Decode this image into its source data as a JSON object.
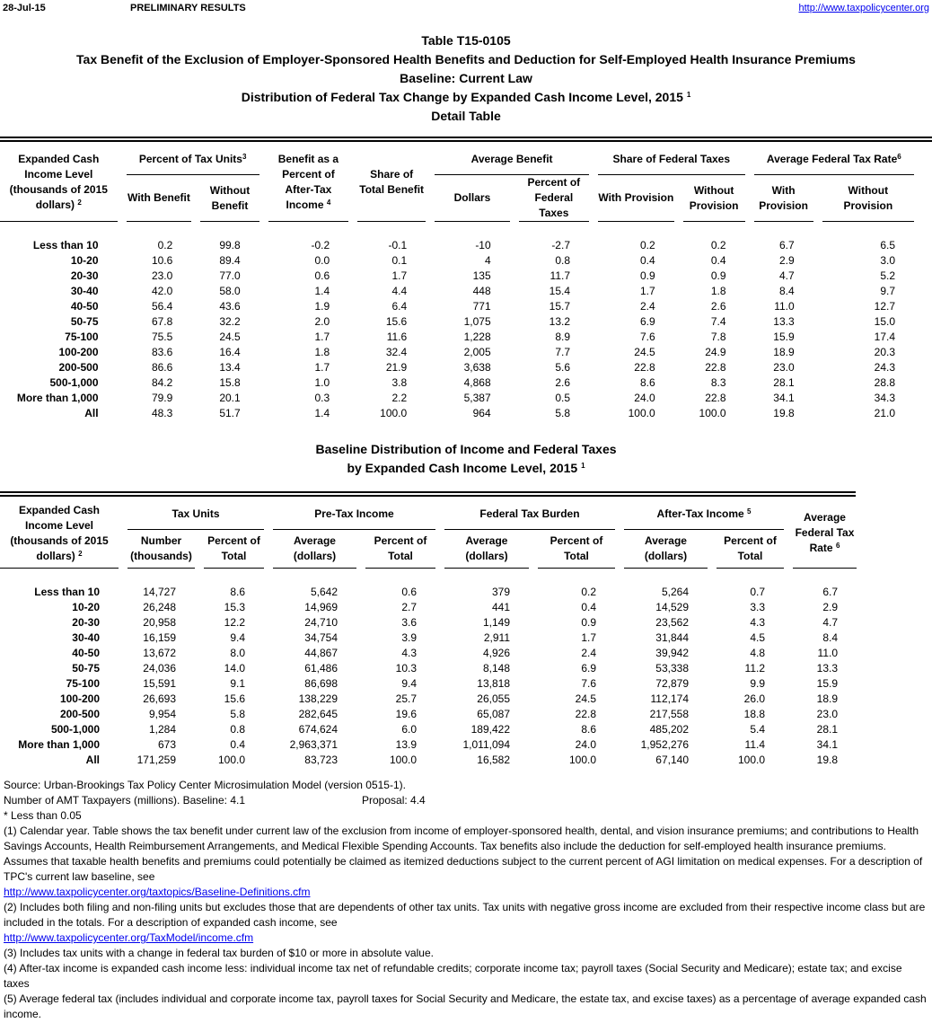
{
  "header": {
    "date": "28-Jul-15",
    "status": "PRELIMINARY RESULTS",
    "url": "http://www.taxpolicycenter.org"
  },
  "titles": {
    "table_id": "Table T15-0105",
    "line2": "Tax Benefit of the Exclusion of Employer-Sponsored Health Benefits and Deduction for Self-Employed Health Insurance Premiums",
    "line3": "Baseline: Current Law",
    "line4": "Distribution of Federal Tax Change by Expanded Cash Income Level, 2015",
    "line4_sup": "1",
    "line5": "Detail Table"
  },
  "table1": {
    "label_header": "Expanded Cash Income Level (thousands of 2015 dollars)",
    "label_sup": "2",
    "pct_units": "Percent of Tax Units",
    "pct_units_sup": "3",
    "with_benefit": "With Benefit",
    "without_benefit": "Without Benefit",
    "benefit_pct": "Benefit as a Percent of After-Tax Income",
    "benefit_pct_sup": "4",
    "share_total": "Share of Total Benefit",
    "avg_benefit": "Average Benefit",
    "dollars": "Dollars",
    "pct_fed": "Percent of Federal Taxes",
    "share_fed": "Share of Federal Taxes",
    "with_prov": "With Provision",
    "without_prov": "Without Provision",
    "avg_rate": "Average Federal Tax Rate",
    "avg_rate_sup": "6",
    "rows": [
      [
        "Less than 10",
        "0.2",
        "99.8",
        "-0.2",
        "-0.1",
        "-10",
        "-2.7",
        "0.2",
        "0.2",
        "6.7",
        "6.5"
      ],
      [
        "10-20",
        "10.6",
        "89.4",
        "0.0",
        "0.1",
        "4",
        "0.8",
        "0.4",
        "0.4",
        "2.9",
        "3.0"
      ],
      [
        "20-30",
        "23.0",
        "77.0",
        "0.6",
        "1.7",
        "135",
        "11.7",
        "0.9",
        "0.9",
        "4.7",
        "5.2"
      ],
      [
        "30-40",
        "42.0",
        "58.0",
        "1.4",
        "4.4",
        "448",
        "15.4",
        "1.7",
        "1.8",
        "8.4",
        "9.7"
      ],
      [
        "40-50",
        "56.4",
        "43.6",
        "1.9",
        "6.4",
        "771",
        "15.7",
        "2.4",
        "2.6",
        "11.0",
        "12.7"
      ],
      [
        "50-75",
        "67.8",
        "32.2",
        "2.0",
        "15.6",
        "1,075",
        "13.2",
        "6.9",
        "7.4",
        "13.3",
        "15.0"
      ],
      [
        "75-100",
        "75.5",
        "24.5",
        "1.7",
        "11.6",
        "1,228",
        "8.9",
        "7.6",
        "7.8",
        "15.9",
        "17.4"
      ],
      [
        "100-200",
        "83.6",
        "16.4",
        "1.8",
        "32.4",
        "2,005",
        "7.7",
        "24.5",
        "24.9",
        "18.9",
        "20.3"
      ],
      [
        "200-500",
        "86.6",
        "13.4",
        "1.7",
        "21.9",
        "3,638",
        "5.6",
        "22.8",
        "22.8",
        "23.0",
        "24.3"
      ],
      [
        "500-1,000",
        "84.2",
        "15.8",
        "1.0",
        "3.8",
        "4,868",
        "2.6",
        "8.6",
        "8.3",
        "28.1",
        "28.8"
      ],
      [
        "More than 1,000",
        "79.9",
        "20.1",
        "0.3",
        "2.2",
        "5,387",
        "0.5",
        "24.0",
        "22.8",
        "34.1",
        "34.3"
      ],
      [
        "All",
        "48.3",
        "51.7",
        "1.4",
        "100.0",
        "964",
        "5.8",
        "100.0",
        "100.0",
        "19.8",
        "21.0"
      ]
    ]
  },
  "table2_title": {
    "line1": "Baseline Distribution of Income and Federal Taxes",
    "line2": "by Expanded Cash Income Level, 2015",
    "sup": "1"
  },
  "table2": {
    "label_header": "Expanded Cash Income Level (thousands of 2015 dollars)",
    "label_sup": "2",
    "tax_units": "Tax Units",
    "number": "Number (thousands)",
    "pct_total": "Percent of Total",
    "pretax": "Pre-Tax Income",
    "avg_dollars": "Average (dollars)",
    "burden": "Federal Tax Burden",
    "aftertax": "After-Tax Income",
    "aftertax_sup": "5",
    "avg_rate": "Average Federal Tax Rate",
    "avg_rate_sup": "6",
    "rows": [
      [
        "Less than 10",
        "14,727",
        "8.6",
        "5,642",
        "0.6",
        "379",
        "0.2",
        "5,264",
        "0.7",
        "6.7"
      ],
      [
        "10-20",
        "26,248",
        "15.3",
        "14,969",
        "2.7",
        "441",
        "0.4",
        "14,529",
        "3.3",
        "2.9"
      ],
      [
        "20-30",
        "20,958",
        "12.2",
        "24,710",
        "3.6",
        "1,149",
        "0.9",
        "23,562",
        "4.3",
        "4.7"
      ],
      [
        "30-40",
        "16,159",
        "9.4",
        "34,754",
        "3.9",
        "2,911",
        "1.7",
        "31,844",
        "4.5",
        "8.4"
      ],
      [
        "40-50",
        "13,672",
        "8.0",
        "44,867",
        "4.3",
        "4,926",
        "2.4",
        "39,942",
        "4.8",
        "11.0"
      ],
      [
        "50-75",
        "24,036",
        "14.0",
        "61,486",
        "10.3",
        "8,148",
        "6.9",
        "53,338",
        "11.2",
        "13.3"
      ],
      [
        "75-100",
        "15,591",
        "9.1",
        "86,698",
        "9.4",
        "13,818",
        "7.6",
        "72,879",
        "9.9",
        "15.9"
      ],
      [
        "100-200",
        "26,693",
        "15.6",
        "138,229",
        "25.7",
        "26,055",
        "24.5",
        "112,174",
        "26.0",
        "18.9"
      ],
      [
        "200-500",
        "9,954",
        "5.8",
        "282,645",
        "19.6",
        "65,087",
        "22.8",
        "217,558",
        "18.8",
        "23.0"
      ],
      [
        "500-1,000",
        "1,284",
        "0.8",
        "674,624",
        "6.0",
        "189,422",
        "8.6",
        "485,202",
        "5.4",
        "28.1"
      ],
      [
        "More than 1,000",
        "673",
        "0.4",
        "2,963,371",
        "13.9",
        "1,011,094",
        "24.0",
        "1,952,276",
        "11.4",
        "34.1"
      ],
      [
        "All",
        "171,259",
        "100.0",
        "83,723",
        "100.0",
        "16,582",
        "100.0",
        "67,140",
        "100.0",
        "19.8"
      ]
    ]
  },
  "notes": {
    "source": "Source: Urban-Brookings Tax Policy Center Microsimulation Model (version 0515-1).",
    "amt_label": "Number of AMT Taxpayers (millions).  Baseline: 4.1",
    "amt_proposal": "Proposal: 4.4",
    "star": "* Less than 0.05",
    "n1": "(1) Calendar year. Table shows the tax benefit under current law of the exclusion from income of employer-sponsored health, dental, and vision insurance premiums; and contributions to Health Savings Accounts, Health Reimbursement Arrangements, and Medical Flexible Spending Accounts.  Tax benefits also include the deduction for self-employed health insurance premiums.  Assumes that taxable health benefits and premiums could potentially be claimed as itemized deductions subject to the current percent of AGI limitation on medical expenses.  For a description of TPC's current law baseline, see",
    "n1_link": "http://www.taxpolicycenter.org/taxtopics/Baseline-Definitions.cfm",
    "n2": "(2) Includes both filing and non-filing units but excludes those that are dependents of other tax units. Tax units with negative gross income are excluded from their respective income class but are included in the totals. For a description of expanded cash income, see",
    "n2_link": "http://www.taxpolicycenter.org/TaxModel/income.cfm",
    "n3": "(3) Includes tax units with a change in federal tax burden of $10 or more in absolute value.",
    "n4": "(4) After-tax income is expanded cash income less: individual income tax net of refundable credits; corporate income tax; payroll taxes (Social Security and Medicare); estate tax; and excise taxes",
    "n5": "(5) Average federal tax (includes individual and corporate income tax, payroll taxes for Social Security and Medicare, the estate tax, and excise taxes) as a percentage of average expanded cash income."
  }
}
